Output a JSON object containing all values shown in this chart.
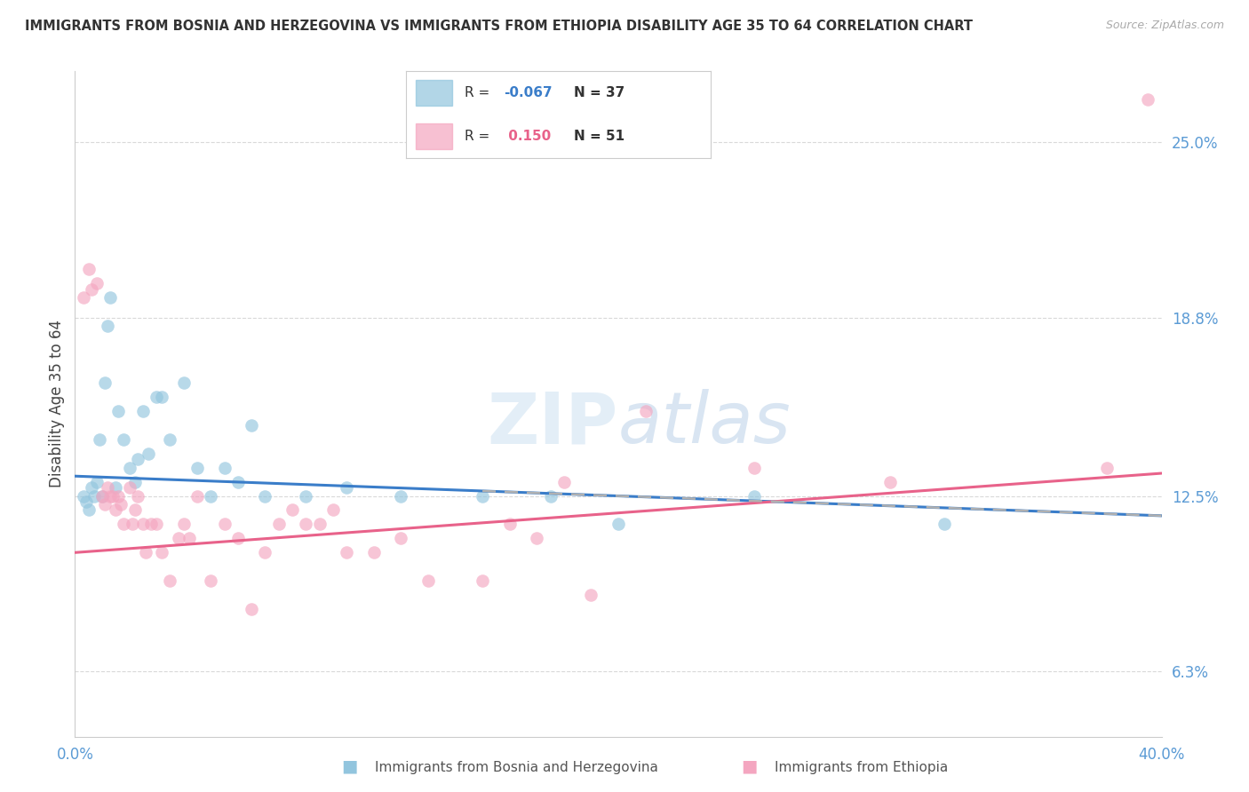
{
  "title": "IMMIGRANTS FROM BOSNIA AND HERZEGOVINA VS IMMIGRANTS FROM ETHIOPIA DISABILITY AGE 35 TO 64 CORRELATION CHART",
  "source": "Source: ZipAtlas.com",
  "ylabel": "Disability Age 35 to 64",
  "xlim": [
    0.0,
    40.0
  ],
  "ylim": [
    4.0,
    27.5
  ],
  "yticks": [
    6.3,
    12.5,
    18.8,
    25.0
  ],
  "xticks": [
    0.0,
    40.0
  ],
  "xticklabels": [
    "0.0%",
    "40.0%"
  ],
  "yticklabels": [
    "6.3%",
    "12.5%",
    "18.8%",
    "25.0%"
  ],
  "bosnia_R": -0.067,
  "bosnia_N": 37,
  "ethiopia_R": 0.15,
  "ethiopia_N": 51,
  "bosnia_color": "#92c5de",
  "ethiopia_color": "#f4a6c0",
  "bosnia_line_color": "#3a7dc9",
  "ethiopia_line_color": "#e8628a",
  "dash_color": "#b0b0b0",
  "watermark": "ZIPatlas",
  "tick_color": "#5b9bd5",
  "legend_R_bosnia_color": "#3a7dc9",
  "legend_R_ethiopia_color": "#e8628a",
  "legend_N_color": "#333333",
  "bosnia_x": [
    0.3,
    0.4,
    0.5,
    0.6,
    0.7,
    0.8,
    0.9,
    1.0,
    1.1,
    1.2,
    1.3,
    1.5,
    1.6,
    1.8,
    2.0,
    2.2,
    2.3,
    2.5,
    2.7,
    3.0,
    3.2,
    3.5,
    4.0,
    4.5,
    5.0,
    5.5,
    6.0,
    6.5,
    7.0,
    8.5,
    10.0,
    12.0,
    15.0,
    17.5,
    20.0,
    25.0,
    32.0
  ],
  "bosnia_y": [
    12.5,
    12.3,
    12.0,
    12.8,
    12.5,
    13.0,
    14.5,
    12.5,
    16.5,
    18.5,
    19.5,
    12.8,
    15.5,
    14.5,
    13.5,
    13.0,
    13.8,
    15.5,
    14.0,
    16.0,
    16.0,
    14.5,
    16.5,
    13.5,
    12.5,
    13.5,
    13.0,
    15.0,
    12.5,
    12.5,
    12.8,
    12.5,
    12.5,
    12.5,
    11.5,
    12.5,
    11.5
  ],
  "ethiopia_x": [
    0.3,
    0.5,
    0.6,
    0.8,
    1.0,
    1.1,
    1.2,
    1.3,
    1.4,
    1.5,
    1.6,
    1.7,
    1.8,
    2.0,
    2.1,
    2.2,
    2.3,
    2.5,
    2.6,
    2.8,
    3.0,
    3.2,
    3.5,
    3.8,
    4.0,
    4.2,
    4.5,
    5.0,
    5.5,
    6.0,
    6.5,
    7.0,
    7.5,
    8.0,
    8.5,
    9.0,
    9.5,
    10.0,
    11.0,
    12.0,
    13.0,
    15.0,
    16.0,
    17.0,
    18.0,
    19.0,
    21.0,
    25.0,
    30.0,
    38.0,
    39.5
  ],
  "ethiopia_y": [
    19.5,
    20.5,
    19.8,
    20.0,
    12.5,
    12.2,
    12.8,
    12.5,
    12.5,
    12.0,
    12.5,
    12.2,
    11.5,
    12.8,
    11.5,
    12.0,
    12.5,
    11.5,
    10.5,
    11.5,
    11.5,
    10.5,
    9.5,
    11.0,
    11.5,
    11.0,
    12.5,
    9.5,
    11.5,
    11.0,
    8.5,
    10.5,
    11.5,
    12.0,
    11.5,
    11.5,
    12.0,
    10.5,
    10.5,
    11.0,
    9.5,
    9.5,
    11.5,
    11.0,
    13.0,
    9.0,
    15.5,
    13.5,
    13.0,
    13.5,
    26.5
  ]
}
